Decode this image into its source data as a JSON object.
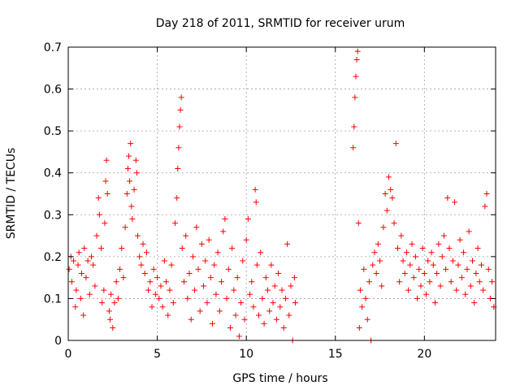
{
  "chart_data": {
    "type": "scatter",
    "title": "Day 218 of 2011, SRMTID for receiver urum",
    "xlabel": "GPS time / hours",
    "ylabel": "SRMTID / TECUs",
    "xlim": [
      0,
      24
    ],
    "ylim": [
      0,
      0.7
    ],
    "xticks": [
      0,
      5,
      10,
      15,
      20
    ],
    "xtick_labels": [
      "0",
      "5",
      "10",
      "15",
      "20"
    ],
    "yticks": [
      0,
      0.1,
      0.2,
      0.3,
      0.4,
      0.5,
      0.6,
      0.7
    ],
    "ytick_labels": [
      "0",
      "0.1",
      "0.2",
      "0.3",
      "0.4",
      "0.5",
      "0.6",
      "0.7"
    ],
    "grid": true,
    "marker": "+",
    "color": "#ff0000",
    "series": [
      {
        "name": "SRMTID",
        "points": [
          [
            0.05,
            0.17
          ],
          [
            0.15,
            0.2
          ],
          [
            0.2,
            0.14
          ],
          [
            0.3,
            0.19
          ],
          [
            0.4,
            0.08
          ],
          [
            0.45,
            0.12
          ],
          [
            0.55,
            0.18
          ],
          [
            0.6,
            0.21
          ],
          [
            0.7,
            0.1
          ],
          [
            0.75,
            0.16
          ],
          [
            0.85,
            0.06
          ],
          [
            0.9,
            0.22
          ],
          [
            1.0,
            0.15
          ],
          [
            1.1,
            0.19
          ],
          [
            1.2,
            0.11
          ],
          [
            1.3,
            0.2
          ],
          [
            1.4,
            0.18
          ],
          [
            1.5,
            0.13
          ],
          [
            1.6,
            0.25
          ],
          [
            1.7,
            0.34
          ],
          [
            1.75,
            0.3
          ],
          [
            1.85,
            0.22
          ],
          [
            1.9,
            0.09
          ],
          [
            2.0,
            0.12
          ],
          [
            2.05,
            0.28
          ],
          [
            2.1,
            0.38
          ],
          [
            2.15,
            0.43
          ],
          [
            2.2,
            0.35
          ],
          [
            2.3,
            0.07
          ],
          [
            2.35,
            0.05
          ],
          [
            2.4,
            0.11
          ],
          [
            2.5,
            0.03
          ],
          [
            2.6,
            0.09
          ],
          [
            2.7,
            0.14
          ],
          [
            2.8,
            0.1
          ],
          [
            2.9,
            0.17
          ],
          [
            3.0,
            0.22
          ],
          [
            3.1,
            0.15
          ],
          [
            3.2,
            0.27
          ],
          [
            3.3,
            0.35
          ],
          [
            3.35,
            0.41
          ],
          [
            3.4,
            0.44
          ],
          [
            3.45,
            0.38
          ],
          [
            3.5,
            0.47
          ],
          [
            3.55,
            0.32
          ],
          [
            3.6,
            0.29
          ],
          [
            3.7,
            0.36
          ],
          [
            3.8,
            0.43
          ],
          [
            3.85,
            0.4
          ],
          [
            3.9,
            0.25
          ],
          [
            4.0,
            0.2
          ],
          [
            4.1,
            0.18
          ],
          [
            4.2,
            0.23
          ],
          [
            4.3,
            0.16
          ],
          [
            4.4,
            0.21
          ],
          [
            4.5,
            0.12
          ],
          [
            4.6,
            0.14
          ],
          [
            4.7,
            0.08
          ],
          [
            4.8,
            0.17
          ],
          [
            4.9,
            0.11
          ],
          [
            5.0,
            0.15
          ],
          [
            5.1,
            0.1
          ],
          [
            5.2,
            0.13
          ],
          [
            5.3,
            0.08
          ],
          [
            5.4,
            0.19
          ],
          [
            5.5,
            0.14
          ],
          [
            5.6,
            0.06
          ],
          [
            5.7,
            0.12
          ],
          [
            5.8,
            0.18
          ],
          [
            5.9,
            0.09
          ],
          [
            6.0,
            0.28
          ],
          [
            6.1,
            0.34
          ],
          [
            6.15,
            0.41
          ],
          [
            6.2,
            0.46
          ],
          [
            6.25,
            0.51
          ],
          [
            6.3,
            0.55
          ],
          [
            6.35,
            0.58
          ],
          [
            6.4,
            0.22
          ],
          [
            6.5,
            0.14
          ],
          [
            6.6,
            0.25
          ],
          [
            6.7,
            0.1
          ],
          [
            6.8,
            0.16
          ],
          [
            6.9,
            0.05
          ],
          [
            7.0,
            0.2
          ],
          [
            7.1,
            0.12
          ],
          [
            7.2,
            0.27
          ],
          [
            7.3,
            0.17
          ],
          [
            7.4,
            0.07
          ],
          [
            7.5,
            0.23
          ],
          [
            7.6,
            0.13
          ],
          [
            7.7,
            0.19
          ],
          [
            7.8,
            0.09
          ],
          [
            7.9,
            0.24
          ],
          [
            8.0,
            0.15
          ],
          [
            8.1,
            0.04
          ],
          [
            8.2,
            0.18
          ],
          [
            8.3,
            0.11
          ],
          [
            8.4,
            0.21
          ],
          [
            8.5,
            0.07
          ],
          [
            8.6,
            0.14
          ],
          [
            8.7,
            0.26
          ],
          [
            8.8,
            0.29
          ],
          [
            8.9,
            0.1
          ],
          [
            9.0,
            0.17
          ],
          [
            9.1,
            0.03
          ],
          [
            9.2,
            0.22
          ],
          [
            9.3,
            0.12
          ],
          [
            9.4,
            0.06
          ],
          [
            9.5,
            0.15
          ],
          [
            9.6,
            0.01
          ],
          [
            9.7,
            0.09
          ],
          [
            9.8,
            0.19
          ],
          [
            9.9,
            0.05
          ],
          [
            10.0,
            0.24
          ],
          [
            10.1,
            0.29
          ],
          [
            10.2,
            0.11
          ],
          [
            10.3,
            0.14
          ],
          [
            10.4,
            0.08
          ],
          [
            10.5,
            0.36
          ],
          [
            10.55,
            0.33
          ],
          [
            10.6,
            0.18
          ],
          [
            10.7,
            0.06
          ],
          [
            10.8,
            0.21
          ],
          [
            10.9,
            0.1
          ],
          [
            11.0,
            0.04
          ],
          [
            11.1,
            0.15
          ],
          [
            11.2,
            0.12
          ],
          [
            11.3,
            0.07
          ],
          [
            11.4,
            0.18
          ],
          [
            11.5,
            0.09
          ],
          [
            11.6,
            0.13
          ],
          [
            11.7,
            0.05
          ],
          [
            11.8,
            0.16
          ],
          [
            11.9,
            0.08
          ],
          [
            12.0,
            0.12
          ],
          [
            12.1,
            0.03
          ],
          [
            12.2,
            0.1
          ],
          [
            12.3,
            0.23
          ],
          [
            12.4,
            0.06
          ],
          [
            12.5,
            0.13
          ],
          [
            12.6,
            0.0
          ],
          [
            12.7,
            0.15
          ],
          [
            12.75,
            0.09
          ],
          [
            16.0,
            0.46
          ],
          [
            16.05,
            0.51
          ],
          [
            16.1,
            0.58
          ],
          [
            16.15,
            0.63
          ],
          [
            16.2,
            0.67
          ],
          [
            16.25,
            0.69
          ],
          [
            16.3,
            0.28
          ],
          [
            16.35,
            0.03
          ],
          [
            16.4,
            0.12
          ],
          [
            16.5,
            0.08
          ],
          [
            16.6,
            0.17
          ],
          [
            16.7,
            0.1
          ],
          [
            16.8,
            0.05
          ],
          [
            16.9,
            0.14
          ],
          [
            17.0,
            0.0
          ],
          [
            17.1,
            0.18
          ],
          [
            17.2,
            0.21
          ],
          [
            17.3,
            0.16
          ],
          [
            17.4,
            0.23
          ],
          [
            17.5,
            0.19
          ],
          [
            17.6,
            0.13
          ],
          [
            17.7,
            0.27
          ],
          [
            17.8,
            0.35
          ],
          [
            17.9,
            0.31
          ],
          [
            18.0,
            0.39
          ],
          [
            18.1,
            0.36
          ],
          [
            18.2,
            0.34
          ],
          [
            18.3,
            0.28
          ],
          [
            18.4,
            0.47
          ],
          [
            18.5,
            0.22
          ],
          [
            18.6,
            0.14
          ],
          [
            18.7,
            0.25
          ],
          [
            18.8,
            0.19
          ],
          [
            18.9,
            0.16
          ],
          [
            19.0,
            0.21
          ],
          [
            19.1,
            0.12
          ],
          [
            19.2,
            0.18
          ],
          [
            19.3,
            0.23
          ],
          [
            19.4,
            0.15
          ],
          [
            19.5,
            0.2
          ],
          [
            19.6,
            0.1
          ],
          [
            19.7,
            0.17
          ],
          [
            19.8,
            0.13
          ],
          [
            19.9,
            0.22
          ],
          [
            20.0,
            0.16
          ],
          [
            20.1,
            0.11
          ],
          [
            20.2,
            0.19
          ],
          [
            20.3,
            0.14
          ],
          [
            20.4,
            0.21
          ],
          [
            20.5,
            0.18
          ],
          [
            20.6,
            0.09
          ],
          [
            20.7,
            0.16
          ],
          [
            20.8,
            0.23
          ],
          [
            20.9,
            0.13
          ],
          [
            21.0,
            0.2
          ],
          [
            21.1,
            0.25
          ],
          [
            21.2,
            0.17
          ],
          [
            21.3,
            0.34
          ],
          [
            21.4,
            0.22
          ],
          [
            21.5,
            0.14
          ],
          [
            21.6,
            0.19
          ],
          [
            21.7,
            0.33
          ],
          [
            21.8,
            0.12
          ],
          [
            21.9,
            0.18
          ],
          [
            22.0,
            0.24
          ],
          [
            22.1,
            0.15
          ],
          [
            22.2,
            0.21
          ],
          [
            22.3,
            0.11
          ],
          [
            22.4,
            0.17
          ],
          [
            22.5,
            0.26
          ],
          [
            22.6,
            0.13
          ],
          [
            22.7,
            0.19
          ],
          [
            22.8,
            0.09
          ],
          [
            22.9,
            0.16
          ],
          [
            23.0,
            0.22
          ],
          [
            23.1,
            0.14
          ],
          [
            23.2,
            0.18
          ],
          [
            23.3,
            0.12
          ],
          [
            23.4,
            0.32
          ],
          [
            23.5,
            0.35
          ],
          [
            23.6,
            0.17
          ],
          [
            23.7,
            0.1
          ],
          [
            23.8,
            0.14
          ],
          [
            23.9,
            0.08
          ]
        ]
      }
    ]
  }
}
